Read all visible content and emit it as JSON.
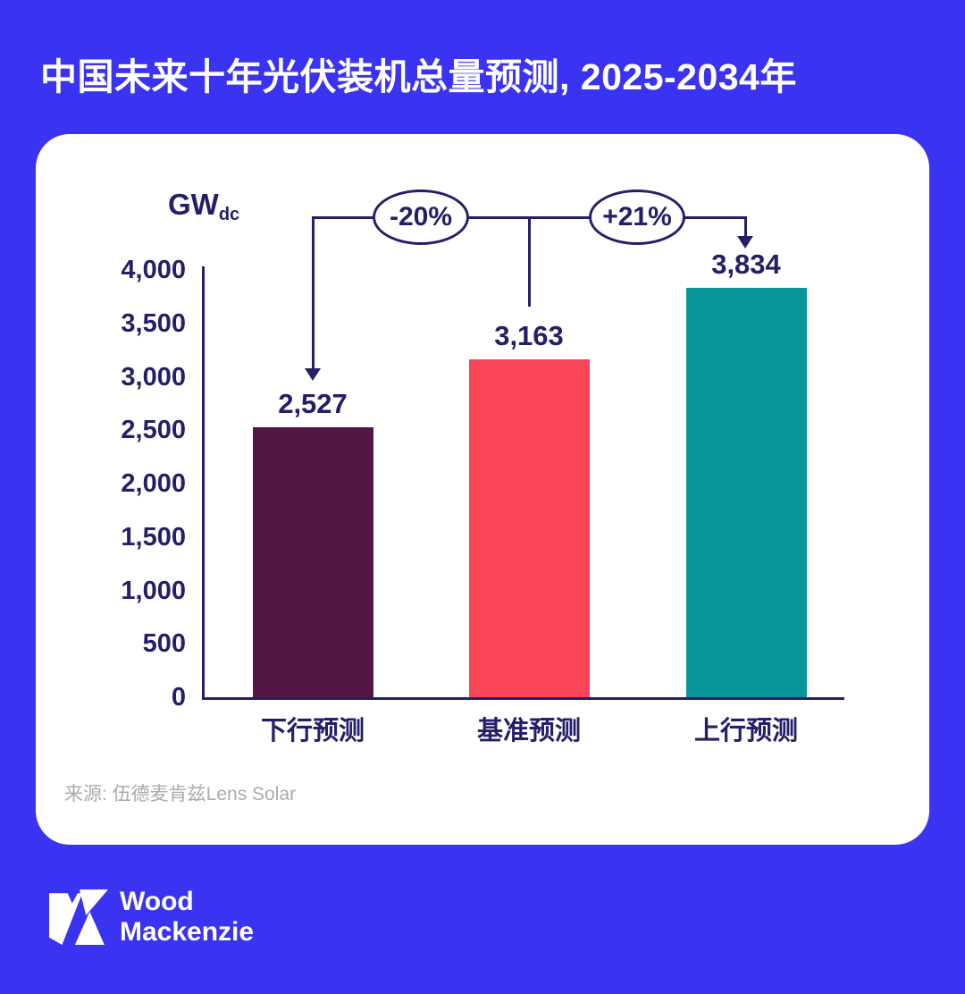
{
  "page": {
    "background_color": "#3B33F2",
    "text_color": "#232069"
  },
  "header": {
    "title": "中国未来十年光伏装机总量预测, 2025-2034年"
  },
  "chart": {
    "unit_label": "GW",
    "unit_sub": "dc",
    "source": "来源: 伍德麦肯兹Lens Solar"
  },
  "chart_data": {
    "type": "bar",
    "title": "中国未来十年光伏装机总量预测, 2025-2034年",
    "ylabel": "GWdc",
    "ylim": [
      0,
      4000
    ],
    "yticks": [
      0,
      500,
      1000,
      1500,
      2000,
      2500,
      3000,
      3500,
      4000
    ],
    "ytick_labels": [
      "0",
      "500",
      "1,000",
      "1,500",
      "2,000",
      "2,500",
      "3,000",
      "3,500",
      "4,000"
    ],
    "categories": [
      "下行预测",
      "基准预测",
      "上行预测"
    ],
    "category_keys": [
      "downside",
      "base",
      "upside"
    ],
    "values": [
      2527,
      3163,
      3834
    ],
    "value_labels": [
      "2,527",
      "3,163",
      "3,834"
    ],
    "bar_colors": [
      "#541743",
      "#FA4458",
      "#089499"
    ],
    "grid": false,
    "legend": false,
    "annotations": [
      {
        "label": "-20%",
        "from": "基准预测",
        "to": "下行预测"
      },
      {
        "label": "+21%",
        "from": "基准预测",
        "to": "上行预测"
      }
    ]
  },
  "footer": {
    "logo_line1": "Wood",
    "logo_line2": "Mackenzie"
  }
}
